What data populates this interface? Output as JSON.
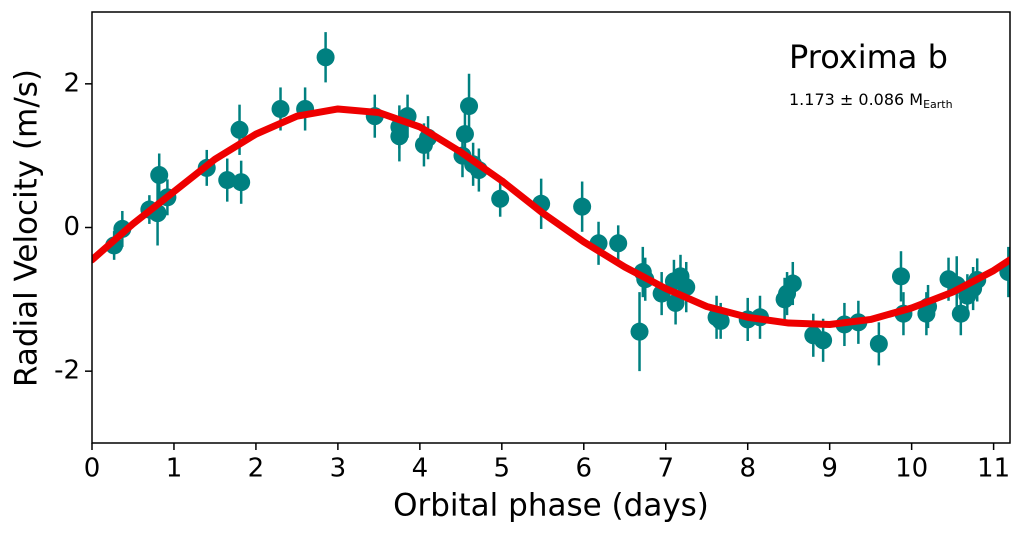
{
  "chart_data": {
    "type": "scatter",
    "xlabel": "Orbital phase (days)",
    "ylabel": "Radial Velocity (m/s)",
    "annotation_title": "Proxima b",
    "annotation_mass": "1.173 ± 0.086 M",
    "annotation_mass_subscript": "Earth",
    "xlim": [
      0,
      11.2
    ],
    "ylim": [
      -3,
      3
    ],
    "xticks": [
      0,
      1,
      2,
      3,
      4,
      5,
      6,
      7,
      8,
      9,
      10,
      11
    ],
    "yticks": [
      -2,
      0,
      2
    ],
    "points": {
      "color": "#008080",
      "x": [
        0.27,
        0.37,
        0.7,
        0.8,
        0.82,
        0.92,
        1.4,
        1.65,
        1.8,
        1.82,
        2.3,
        2.6,
        2.85,
        3.45,
        3.75,
        3.75,
        3.85,
        4.05,
        4.1,
        4.52,
        4.55,
        4.6,
        4.65,
        4.72,
        4.98,
        5.48,
        5.98,
        6.18,
        6.42,
        6.68,
        6.72,
        6.75,
        6.95,
        7.1,
        7.12,
        7.18,
        7.25,
        7.62,
        7.67,
        8.0,
        8.15,
        8.45,
        8.48,
        8.55,
        8.8,
        8.92,
        9.18,
        9.35,
        9.6,
        9.87,
        9.9,
        10.18,
        10.2,
        10.45,
        10.55,
        10.6,
        10.68,
        10.75,
        10.8,
        11.18
      ],
      "y": [
        -0.25,
        -0.02,
        0.25,
        0.2,
        0.73,
        0.42,
        0.83,
        0.66,
        1.36,
        0.63,
        1.65,
        1.65,
        2.37,
        1.55,
        1.27,
        1.4,
        1.55,
        1.15,
        1.25,
        1.0,
        1.3,
        1.69,
        0.88,
        0.8,
        0.4,
        0.33,
        0.29,
        -0.22,
        -0.22,
        -1.45,
        -0.62,
        -0.72,
        -0.92,
        -0.75,
        -1.05,
        -0.68,
        -0.83,
        -1.25,
        -1.3,
        -1.28,
        -1.25,
        -1.0,
        -0.92,
        -0.78,
        -1.5,
        -1.57,
        -1.35,
        -1.32,
        -1.62,
        -0.68,
        -1.2,
        -1.2,
        -1.1,
        -0.72,
        -0.8,
        -1.2,
        -0.95,
        -0.85,
        -0.73,
        -0.62
      ],
      "yerr": [
        0.2,
        0.25,
        0.2,
        0.45,
        0.3,
        0.25,
        0.25,
        0.3,
        0.35,
        0.3,
        0.3,
        0.3,
        0.35,
        0.3,
        0.35,
        0.3,
        0.3,
        0.3,
        0.3,
        0.3,
        0.3,
        0.45,
        0.3,
        0.3,
        0.25,
        0.35,
        0.35,
        0.3,
        0.25,
        0.55,
        0.35,
        0.3,
        0.3,
        0.3,
        0.3,
        0.3,
        0.35,
        0.3,
        0.25,
        0.3,
        0.3,
        0.3,
        0.3,
        0.3,
        0.3,
        0.3,
        0.3,
        0.3,
        0.3,
        0.35,
        0.3,
        0.3,
        0.3,
        0.3,
        0.4,
        0.3,
        0.3,
        0.3,
        0.3,
        0.35
      ]
    },
    "fit": {
      "color": "#ee0000",
      "x": [
        0,
        0.5,
        1,
        1.5,
        2,
        2.5,
        3,
        3.5,
        4,
        4.5,
        5,
        5.5,
        6,
        6.5,
        7,
        7.5,
        8,
        8.5,
        9,
        9.5,
        10,
        10.5,
        11,
        11.2
      ],
      "y": [
        -0.45,
        0.05,
        0.5,
        0.95,
        1.3,
        1.55,
        1.65,
        1.6,
        1.4,
        1.05,
        0.65,
        0.2,
        -0.2,
        -0.55,
        -0.85,
        -1.1,
        -1.25,
        -1.33,
        -1.35,
        -1.28,
        -1.12,
        -0.9,
        -0.6,
        -0.45
      ]
    }
  }
}
